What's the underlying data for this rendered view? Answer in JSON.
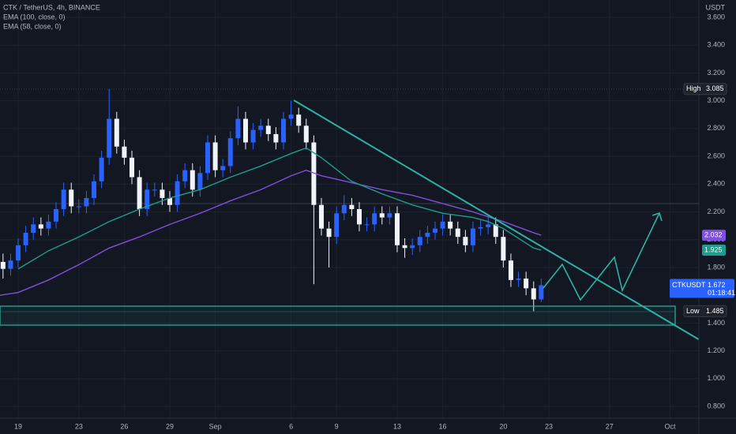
{
  "chart_data": {
    "type": "candlestick",
    "title": "CTK / TetherUS, 4h, BINANCE",
    "currency": "USDT",
    "up_color": "#2962ff",
    "down_color": "#f0f3fa",
    "grid": true,
    "x": [
      -1,
      -0.5,
      0,
      0.5,
      1,
      1.5,
      2,
      2.5,
      3,
      3.5,
      4,
      4.5,
      5,
      5.5,
      6,
      6.5,
      7,
      7.5,
      8,
      8.5,
      9,
      9.5,
      10,
      10.5,
      11,
      11.5,
      12,
      12.5,
      13,
      13.5,
      14,
      14.5,
      15,
      15.5,
      16,
      16.5,
      17,
      17.5,
      18,
      18.5,
      19,
      19.5,
      20,
      20.5,
      21,
      21.5,
      22,
      22.5,
      23,
      23.5,
      24,
      24.5,
      25,
      25.5,
      26,
      26.5,
      27,
      27.5,
      28,
      28.5,
      29,
      29.5,
      30,
      30.5,
      31,
      31.5,
      32,
      32.5,
      33,
      33.5,
      34,
      34.5
    ],
    "open": [
      1.84,
      1.79,
      1.85,
      1.96,
      2.05,
      2.11,
      2.08,
      2.13,
      2.22,
      2.36,
      2.24,
      2.24,
      2.3,
      2.42,
      2.59,
      2.87,
      2.67,
      2.59,
      2.45,
      2.22,
      2.36,
      2.36,
      2.3,
      2.25,
      2.42,
      2.5,
      2.36,
      2.48,
      2.7,
      2.5,
      2.53,
      2.73,
      2.87,
      2.7,
      2.79,
      2.82,
      2.76,
      2.7,
      2.87,
      2.9,
      2.82,
      2.7,
      2.25,
      2.08,
      2.02,
      2.19,
      2.25,
      2.22,
      2.11,
      2.11,
      2.19,
      2.16,
      2.19,
      1.96,
      1.94,
      1.96,
      2.02,
      2.05,
      2.08,
      2.13,
      2.08,
      2.02,
      1.96,
      2.08,
      2.09,
      2.11,
      2.02,
      1.85,
      1.71,
      1.72,
      1.65,
      1.57
    ],
    "high": [
      1.9,
      1.9,
      2.01,
      2.1,
      2.16,
      2.16,
      2.18,
      2.27,
      2.41,
      2.41,
      2.29,
      2.35,
      2.47,
      2.64,
      3.085,
      2.92,
      2.72,
      2.64,
      2.5,
      2.41,
      2.41,
      2.41,
      2.35,
      2.47,
      2.55,
      2.55,
      2.53,
      2.75,
      2.75,
      2.58,
      2.78,
      2.96,
      2.92,
      2.84,
      2.87,
      2.87,
      2.81,
      2.92,
      3.0,
      2.95,
      2.87,
      2.75,
      2.3,
      2.13,
      2.24,
      2.32,
      2.3,
      2.27,
      2.16,
      2.24,
      2.24,
      2.24,
      2.24,
      2.01,
      2.01,
      2.07,
      2.1,
      2.13,
      2.18,
      2.18,
      2.13,
      2.07,
      2.13,
      2.14,
      2.16,
      2.16,
      2.07,
      1.9,
      1.77,
      1.77,
      1.7,
      1.72
    ],
    "low": [
      1.72,
      1.74,
      1.8,
      1.91,
      2.0,
      2.03,
      2.03,
      2.08,
      2.17,
      2.19,
      2.19,
      2.19,
      2.25,
      2.37,
      2.54,
      2.62,
      2.54,
      2.4,
      2.17,
      2.17,
      2.31,
      2.25,
      2.2,
      2.2,
      2.37,
      2.31,
      2.31,
      2.43,
      2.45,
      2.45,
      2.48,
      2.68,
      2.65,
      2.65,
      2.74,
      2.71,
      2.65,
      2.65,
      2.82,
      2.77,
      2.65,
      1.68,
      2.03,
      1.8,
      1.97,
      2.14,
      2.17,
      2.06,
      2.06,
      2.06,
      2.11,
      2.11,
      1.91,
      1.87,
      1.89,
      1.91,
      1.97,
      2.0,
      2.03,
      2.03,
      1.97,
      1.91,
      1.91,
      2.03,
      2.04,
      1.97,
      1.8,
      1.66,
      1.66,
      1.6,
      1.485,
      1.55
    ],
    "close": [
      1.79,
      1.85,
      1.96,
      2.05,
      2.11,
      2.08,
      2.13,
      2.22,
      2.36,
      2.24,
      2.24,
      2.3,
      2.42,
      2.59,
      2.87,
      2.67,
      2.59,
      2.45,
      2.22,
      2.36,
      2.36,
      2.3,
      2.25,
      2.42,
      2.5,
      2.36,
      2.48,
      2.7,
      2.5,
      2.53,
      2.73,
      2.87,
      2.7,
      2.79,
      2.82,
      2.76,
      2.7,
      2.87,
      2.9,
      2.82,
      2.7,
      2.25,
      2.08,
      2.02,
      2.19,
      2.25,
      2.22,
      2.11,
      2.11,
      2.19,
      2.16,
      2.19,
      1.96,
      1.94,
      1.96,
      2.02,
      2.05,
      2.08,
      2.13,
      2.08,
      2.02,
      1.96,
      2.08,
      2.09,
      2.11,
      2.02,
      1.85,
      1.71,
      1.72,
      1.65,
      1.57,
      1.672
    ],
    "indicators": [
      {
        "name": "EMA (100, close, 0)",
        "color": "#7e4fe0",
        "x": [
          -1.2,
          0,
          2,
          4,
          6,
          8,
          10,
          12,
          14,
          16,
          18,
          19,
          20,
          22,
          24,
          26,
          28,
          30,
          32,
          34,
          34.5
        ],
        "values": [
          1.6,
          1.62,
          1.71,
          1.82,
          1.94,
          2.02,
          2.11,
          2.19,
          2.28,
          2.36,
          2.46,
          2.5,
          2.46,
          2.41,
          2.36,
          2.32,
          2.26,
          2.2,
          2.13,
          2.05,
          2.032
        ]
      },
      {
        "name": "EMA (58, close, 0)",
        "color": "#1f9c8a",
        "x": [
          0,
          2,
          4,
          6,
          8,
          10,
          12,
          14,
          16,
          18,
          19,
          20,
          22,
          24,
          26,
          28,
          30,
          31,
          32,
          34,
          34.5
        ],
        "values": [
          1.79,
          1.92,
          2.02,
          2.13,
          2.22,
          2.3,
          2.36,
          2.45,
          2.53,
          2.62,
          2.66,
          2.59,
          2.42,
          2.33,
          2.25,
          2.19,
          2.16,
          2.13,
          2.08,
          1.94,
          1.925
        ]
      }
    ],
    "price_labels": [
      {
        "name": "High",
        "value": 3.085,
        "color": "#1e222d"
      },
      {
        "value": 2.032,
        "color": "#7e4fe0"
      },
      {
        "value": 1.925,
        "color": "#1f9c8a"
      },
      {
        "name": "CTKUSDT",
        "value": 1.672,
        "countdown": "01:18:41",
        "color": "#2962ff"
      },
      {
        "name": "Low",
        "value": 1.485,
        "color": "#1e222d"
      }
    ],
    "xlim": [
      -1.2,
      44.9
    ],
    "ylim": [
      0.715,
      3.725
    ],
    "xticks": [
      {
        "value": 0,
        "label": "19"
      },
      {
        "value": 4,
        "label": "23"
      },
      {
        "value": 7,
        "label": "26"
      },
      {
        "value": 10,
        "label": "29"
      },
      {
        "value": 13,
        "label": "Sep"
      },
      {
        "value": 18,
        "label": "6"
      },
      {
        "value": 21,
        "label": "9"
      },
      {
        "value": 25,
        "label": "13"
      },
      {
        "value": 28,
        "label": "16"
      },
      {
        "value": 32,
        "label": "20"
      },
      {
        "value": 35,
        "label": "23"
      },
      {
        "value": 39,
        "label": "27"
      },
      {
        "value": 43,
        "label": "Oct"
      }
    ],
    "yticks": [
      {
        "value": 3.6,
        "label": "3.600"
      },
      {
        "value": 3.4,
        "label": "3.400"
      },
      {
        "value": 3.2,
        "label": "3.200"
      },
      {
        "value": 3.0,
        "label": "3.000"
      },
      {
        "value": 2.8,
        "label": "2.800"
      },
      {
        "value": 2.6,
        "label": "2.600"
      },
      {
        "value": 2.4,
        "label": "2.400"
      },
      {
        "value": 2.2,
        "label": "2.200"
      },
      {
        "value": 2.0,
        "label": "2.000"
      },
      {
        "value": 1.8,
        "label": "1.800"
      },
      {
        "value": 1.4,
        "label": "1.400"
      },
      {
        "value": 1.2,
        "label": "1.200"
      },
      {
        "value": 1.0,
        "label": "1.000"
      },
      {
        "value": 0.8,
        "label": "0.800"
      }
    ]
  }
}
